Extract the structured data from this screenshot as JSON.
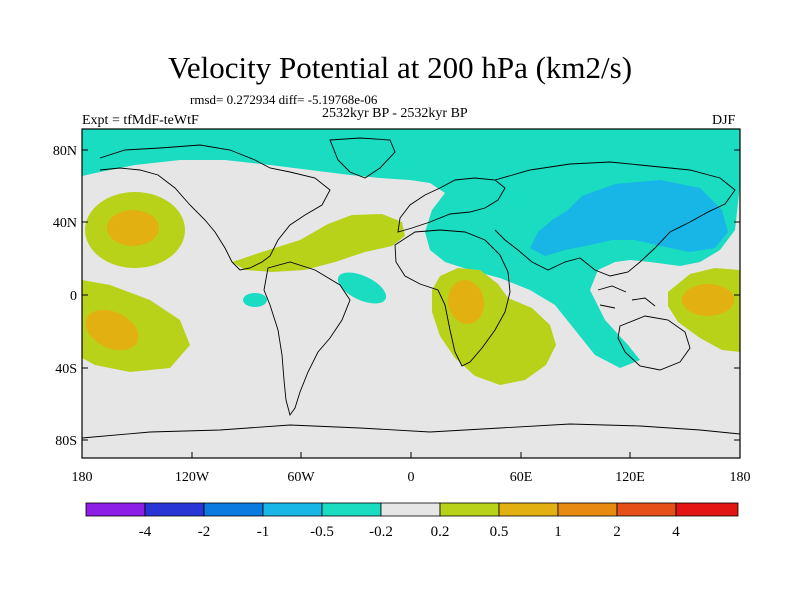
{
  "header": {
    "title": "Velocity Potential at 200 hPa (km2/s)",
    "stats": "rmsd= 0.272934 diff= -5.19768e-06",
    "experiment": "Expt = tfMdF-teWtF",
    "period": "2532kyr BP - 2532kyr BP",
    "season": "DJF"
  },
  "axes": {
    "lat_labels": [
      "80N",
      "40N",
      "0",
      "40S",
      "80S"
    ],
    "lon_labels": [
      "180",
      "120W",
      "60W",
      "0",
      "60E",
      "120E",
      "180"
    ]
  },
  "colorbar": {
    "labels": [
      "-4",
      "-2",
      "-1",
      "-0.5",
      "-0.2",
      "0.2",
      "0.5",
      "1",
      "2",
      "4"
    ],
    "colors": [
      "#8c1ee6",
      "#2a35d6",
      "#0a79e0",
      "#18b6e6",
      "#19dcc0",
      "#e6e6e6",
      "#b8d21a",
      "#e3b012",
      "#e88a10",
      "#e45018",
      "#e31414"
    ]
  },
  "palette": {
    "neutral": "#e6e6e6",
    "green": "#b8d21a",
    "yellow": "#e3b012",
    "cyan": "#19dcc0",
    "blue": "#18b6e6",
    "coast": "#000000"
  }
}
